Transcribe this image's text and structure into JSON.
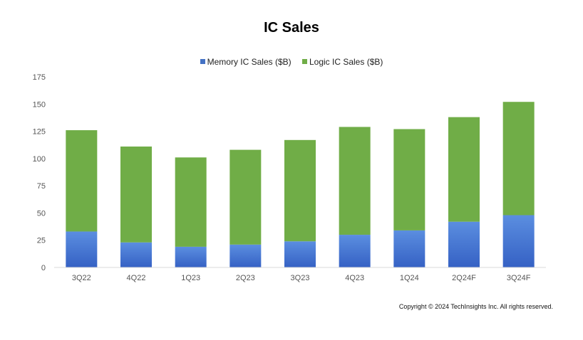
{
  "chart_data": {
    "type": "bar",
    "stacked": true,
    "title": "IC Sales",
    "categories": [
      "3Q22",
      "4Q22",
      "1Q23",
      "2Q23",
      "3Q23",
      "4Q23",
      "1Q24",
      "2Q24F",
      "3Q24F"
    ],
    "series": [
      {
        "name": "Memory IC Sales ($B)",
        "color": "#4472c4",
        "values": [
          33,
          23,
          19,
          21,
          24,
          30,
          34,
          42,
          48
        ]
      },
      {
        "name": "Logic IC Sales ($B)",
        "color": "#70ad47",
        "values": [
          93,
          88,
          82,
          87,
          93,
          99,
          93,
          96,
          104
        ]
      }
    ],
    "yticks": [
      "0",
      "25",
      "50",
      "75",
      "100",
      "125",
      "150",
      "175"
    ],
    "ylim": [
      0,
      175
    ],
    "grid": false,
    "legend_position": "top"
  },
  "copyright": "Copyright © 2024 TechInsights Inc.  All rights reserved."
}
